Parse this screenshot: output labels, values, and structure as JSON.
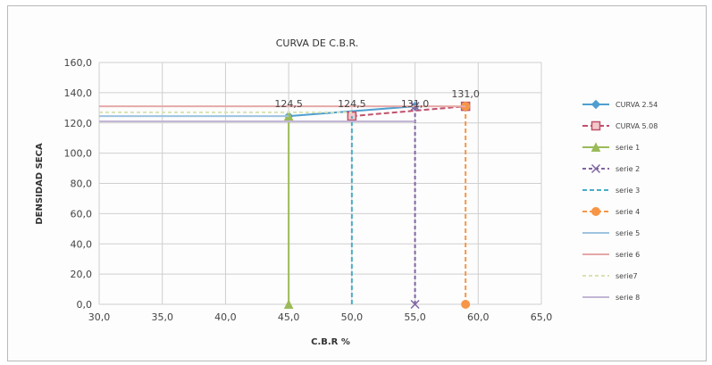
{
  "chart_data": {
    "type": "line",
    "title": "CURVA DE C.B.R.",
    "xlabel": "C.B.R %",
    "ylabel": "DENSIDAD SECA",
    "xlim": [
      30,
      65
    ],
    "ylim": [
      0,
      160
    ],
    "grid": true,
    "legend_position": "right",
    "x_ticks": [
      "30,0",
      "35,0",
      "40,0",
      "45,0",
      "50,0",
      "55,0",
      "60,0",
      "65,0"
    ],
    "y_ticks": [
      "0,0",
      "20,0",
      "40,0",
      "60,0",
      "80,0",
      "100,0",
      "120,0",
      "140,0",
      "160,0"
    ],
    "series": [
      {
        "name": "CURVA 2.54",
        "color": "#4f9fd0",
        "dash": "",
        "marker": "diamond",
        "points": [
          [
            45,
            124.5
          ],
          [
            55,
            131
          ]
        ]
      },
      {
        "name": "CURVA 5.08",
        "color": "#c0506b",
        "dash": "6,3",
        "marker": "square",
        "points": [
          [
            50,
            124.5
          ],
          [
            59,
            131
          ]
        ]
      },
      {
        "name": "serie 1",
        "color": "#9bbb59",
        "dash": "",
        "marker": "triangle",
        "points": [
          [
            45,
            0
          ],
          [
            45,
            124.5
          ]
        ]
      },
      {
        "name": "serie 2",
        "color": "#8064a2",
        "dash": "4,3",
        "marker": "x",
        "points": [
          [
            55,
            0
          ],
          [
            55,
            131
          ]
        ]
      },
      {
        "name": "serie 3",
        "color": "#4bacc6",
        "dash": "5,3",
        "marker": "none",
        "points": [
          [
            50,
            0
          ],
          [
            50,
            124.5
          ]
        ]
      },
      {
        "name": "serie 4",
        "color": "#f79646",
        "dash": "5,3",
        "marker": "circle",
        "points": [
          [
            59,
            0
          ],
          [
            59,
            131
          ]
        ]
      },
      {
        "name": "serie 5",
        "color": "#9cc3e0",
        "dash": "",
        "marker": "none",
        "points": [
          [
            30,
            124.5
          ],
          [
            45,
            124.5
          ]
        ]
      },
      {
        "name": "serie 6",
        "color": "#e6a8a8",
        "dash": "",
        "marker": "none",
        "points": [
          [
            30,
            131
          ],
          [
            59,
            131
          ]
        ]
      },
      {
        "name": "serie7",
        "color": "#d7e3b4",
        "dash": "4,3",
        "marker": "none",
        "points": [
          [
            30,
            127
          ],
          [
            50,
            127
          ]
        ]
      },
      {
        "name": "serie 8",
        "color": "#c3b6d6",
        "dash": "",
        "marker": "none",
        "points": [
          [
            30,
            121
          ],
          [
            55,
            121
          ]
        ]
      }
    ],
    "data_labels": [
      {
        "x": 45,
        "y": 124.5,
        "text": "124,5"
      },
      {
        "x": 50,
        "y": 124.5,
        "text": "124,5"
      },
      {
        "x": 55,
        "y": 124.5,
        "text": "131,0"
      },
      {
        "x": 59,
        "y": 131,
        "text": "131,0"
      }
    ]
  }
}
